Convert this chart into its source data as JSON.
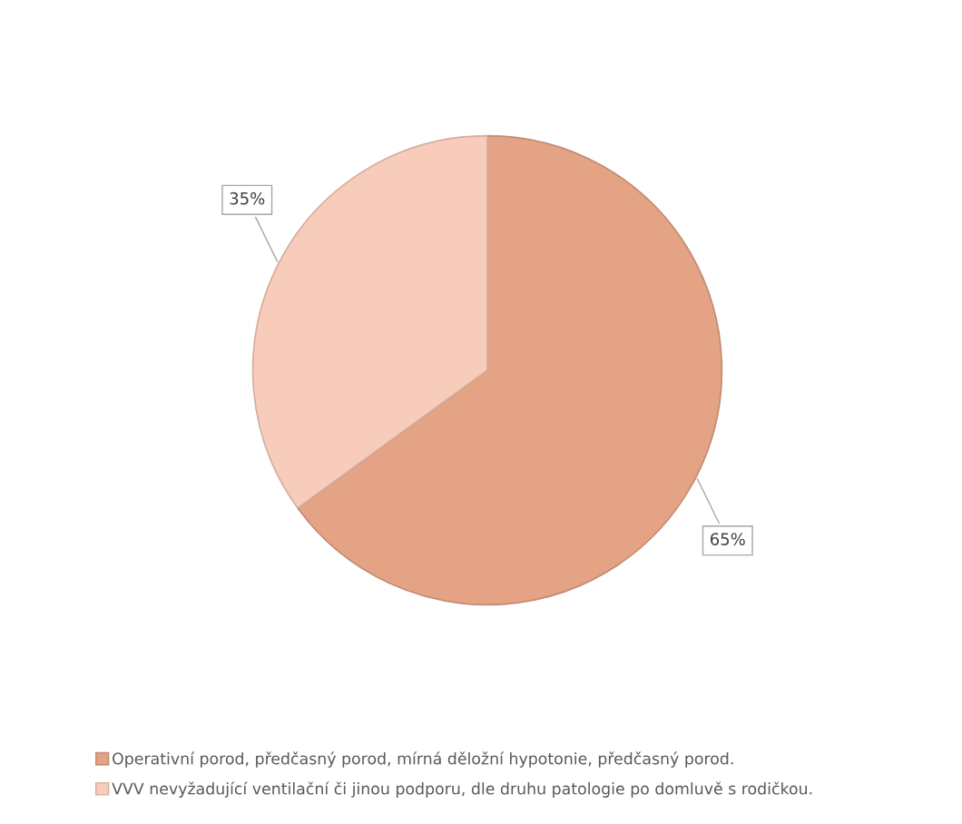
{
  "chart_data": {
    "type": "pie",
    "categories": [
      "Operativní porod, předčasný porod, mírná děložní hypotonie, předčasný porod.",
      "VVV nevyžadující ventilační či jinou podporu, dle druhu patologie po domluvě s rodičkou."
    ],
    "values": [
      65,
      35
    ],
    "colors": [
      "#e4a384",
      "#f8ccbb"
    ],
    "value_labels": [
      "65%",
      "35%"
    ],
    "legend": "bottom"
  }
}
